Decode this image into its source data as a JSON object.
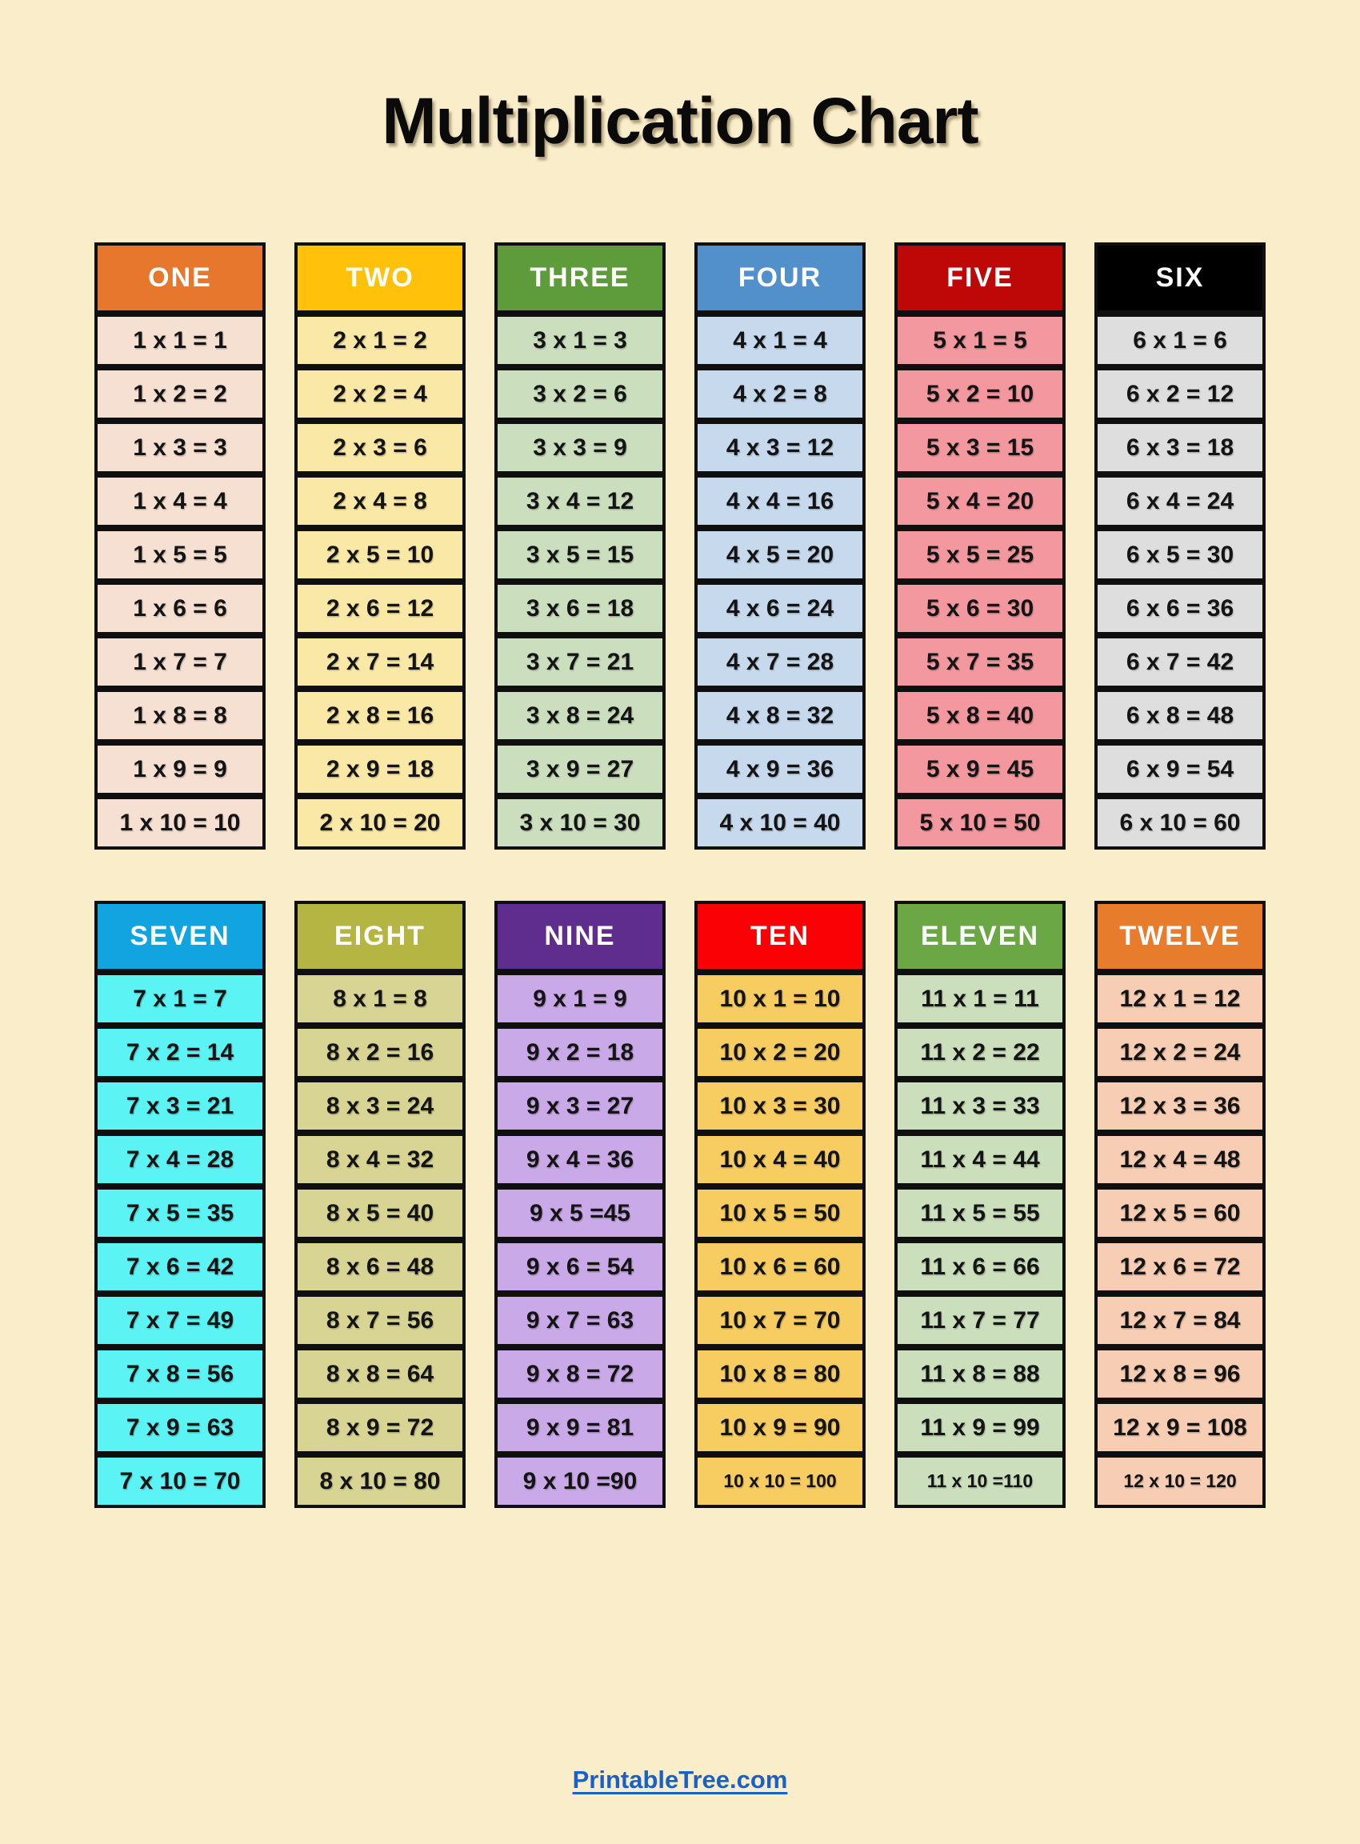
{
  "page": {
    "title": "Multiplication Chart",
    "background_color": "#FAEDC9",
    "border_color": "#0F0F0F",
    "footer_link": "PrintableTree.com",
    "footer_color": "#1A61C6"
  },
  "sections": [
    {
      "tables": [
        {
          "id": "one",
          "label": "ONE",
          "header_bg": "#E8772E",
          "header_text_color": "#FFFFFF",
          "body_bg": "#F6E0D2",
          "small_last_row": false,
          "rows": [
            "1 x 1 = 1",
            "1 x 2 = 2",
            "1 x 3 = 3",
            "1 x 4 = 4",
            "1 x 5 = 5",
            "1 x 6 = 6",
            "1 x 7 = 7",
            "1 x 8 = 8",
            "1 x 9 = 9",
            "1 x 10 = 10"
          ]
        },
        {
          "id": "two",
          "label": "TWO",
          "header_bg": "#FFC10A",
          "header_text_color": "#FFFFFF",
          "body_bg": "#FAE8A6",
          "small_last_row": false,
          "rows": [
            "2 x 1 = 2",
            "2 x 2 = 4",
            "2 x 3 = 6",
            "2 x 4 = 8",
            "2 x 5 = 10",
            "2 x 6 = 12",
            "2 x 7 = 14",
            "2 x 8 = 16",
            "2 x 9 = 18",
            "2 x 10 = 20"
          ]
        },
        {
          "id": "three",
          "label": "THREE",
          "header_bg": "#5D9B3B",
          "header_text_color": "#FFFFFF",
          "body_bg": "#CBDFBE",
          "small_last_row": false,
          "rows": [
            "3 x 1 = 3",
            "3 x 2 = 6",
            "3 x 3 = 9",
            "3 x 4 = 12",
            "3 x 5 = 15",
            "3 x 6 = 18",
            "3 x 7 = 21",
            "3 x 8 = 24",
            "3 x 9 = 27",
            "3 x 10 = 30"
          ]
        },
        {
          "id": "four",
          "label": "FOUR",
          "header_bg": "#5190CB",
          "header_text_color": "#FFFFFF",
          "body_bg": "#C6D9ED",
          "small_last_row": false,
          "rows": [
            "4 x 1 = 4",
            "4 x 2 = 8",
            "4 x 3 = 12",
            "4 x 4 = 16",
            "4 x 5 = 20",
            "4 x 6 = 24",
            "4 x 7 = 28",
            "4 x 8 = 32",
            "4 x 9 = 36",
            "4 x 10 = 40"
          ]
        },
        {
          "id": "five",
          "label": "FIVE",
          "header_bg": "#BE0808",
          "header_text_color": "#FFFFFF",
          "body_bg": "#F3989E",
          "small_last_row": false,
          "rows": [
            "5 x 1 = 5",
            "5 x 2 = 10",
            "5 x 3 = 15",
            "5 x 4 = 20",
            "5 x 5 = 25",
            "5 x 6 = 30",
            "5 x 7 = 35",
            "5 x 8 = 40",
            "5 x 9 = 45",
            "5 x 10 = 50"
          ]
        },
        {
          "id": "six",
          "label": "SIX",
          "header_bg": "#000000",
          "header_text_color": "#FFFFFF",
          "body_bg": "#DEDEDE",
          "small_last_row": false,
          "rows": [
            "6 x 1 = 6",
            "6 x 2 = 12",
            "6 x 3 = 18",
            "6 x 4 = 24",
            "6 x 5 = 30",
            "6 x 6 = 36",
            "6 x 7 = 42",
            "6 x 8 = 48",
            "6 x 9 = 54",
            "6 x 10 = 60"
          ]
        }
      ]
    },
    {
      "tables": [
        {
          "id": "seven",
          "label": "SEVEN",
          "header_bg": "#12A4E0",
          "header_text_color": "#FFFFFF",
          "body_bg": "#5CF3F4",
          "small_last_row": false,
          "rows": [
            "7 x 1 = 7",
            "7 x 2 = 14",
            "7 x 3 = 21",
            "7 x 4 = 28",
            "7 x 5 = 35",
            "7 x 6 = 42",
            "7 x 7 = 49",
            "7 x 8 = 56",
            "7 x 9 = 63",
            "7 x 10 = 70"
          ]
        },
        {
          "id": "eight",
          "label": "EIGHT",
          "header_bg": "#B4B542",
          "header_text_color": "#FFFFFF",
          "body_bg": "#D7D494",
          "small_last_row": false,
          "rows": [
            "8 x 1 = 8",
            "8 x 2 = 16",
            "8 x 3 = 24",
            "8 x 4 = 32",
            "8 x 5 = 40",
            "8 x 6 = 48",
            "8 x 7 = 56",
            "8 x 8 = 64",
            "8 x 9 = 72",
            "8 x 10 = 80"
          ]
        },
        {
          "id": "nine",
          "label": "NINE",
          "header_bg": "#5F2D8D",
          "header_text_color": "#FFFFFF",
          "body_bg": "#C9A9E7",
          "small_last_row": false,
          "rows": [
            "9 x 1 = 9",
            "9 x 2 = 18",
            "9 x 3 = 27",
            "9 x 4 = 36",
            "9 x 5 =45",
            "9 x 6 = 54",
            "9 x 7 = 63",
            "9 x 8 = 72",
            "9 x 9 = 81",
            "9 x 10 =90"
          ]
        },
        {
          "id": "ten",
          "label": "TEN",
          "header_bg": "#F90105",
          "header_text_color": "#FFFFFF",
          "body_bg": "#F7CD62",
          "small_last_row": true,
          "rows": [
            "10 x 1 = 10",
            "10 x 2 = 20",
            "10 x 3 = 30",
            "10 x 4 = 40",
            "10 x 5 = 50",
            "10 x 6 = 60",
            "10 x 7 = 70",
            "10 x 8 = 80",
            "10 x 9 = 90",
            "10 x 10 = 100"
          ]
        },
        {
          "id": "eleven",
          "label": "ELEVEN",
          "header_bg": "#6CA746",
          "header_text_color": "#FFFFFF",
          "body_bg": "#CBDFBC",
          "small_last_row": true,
          "rows": [
            "11 x 1 = 11",
            "11 x 2 = 22",
            "11 x 3 = 33",
            "11 x 4 = 44",
            "11 x 5 = 55",
            "11 x 6 = 66",
            "11 x 7 = 77",
            "11 x 8 = 88",
            "11 x 9 = 99",
            "11 x 10 =110"
          ]
        },
        {
          "id": "twelve",
          "label": "TWELVE",
          "header_bg": "#E87C2D",
          "header_text_color": "#FFFFFF",
          "body_bg": "#F7CDB3",
          "small_last_row": true,
          "rows": [
            "12 x 1 = 12",
            "12 x 2 = 24",
            "12 x 3 = 36",
            "12 x 4 = 48",
            "12 x 5 = 60",
            "12 x 6 = 72",
            "12 x 7 = 84",
            "12 x 8 = 96",
            "12 x 9 = 108",
            "12 x 10 = 120"
          ]
        }
      ]
    }
  ]
}
